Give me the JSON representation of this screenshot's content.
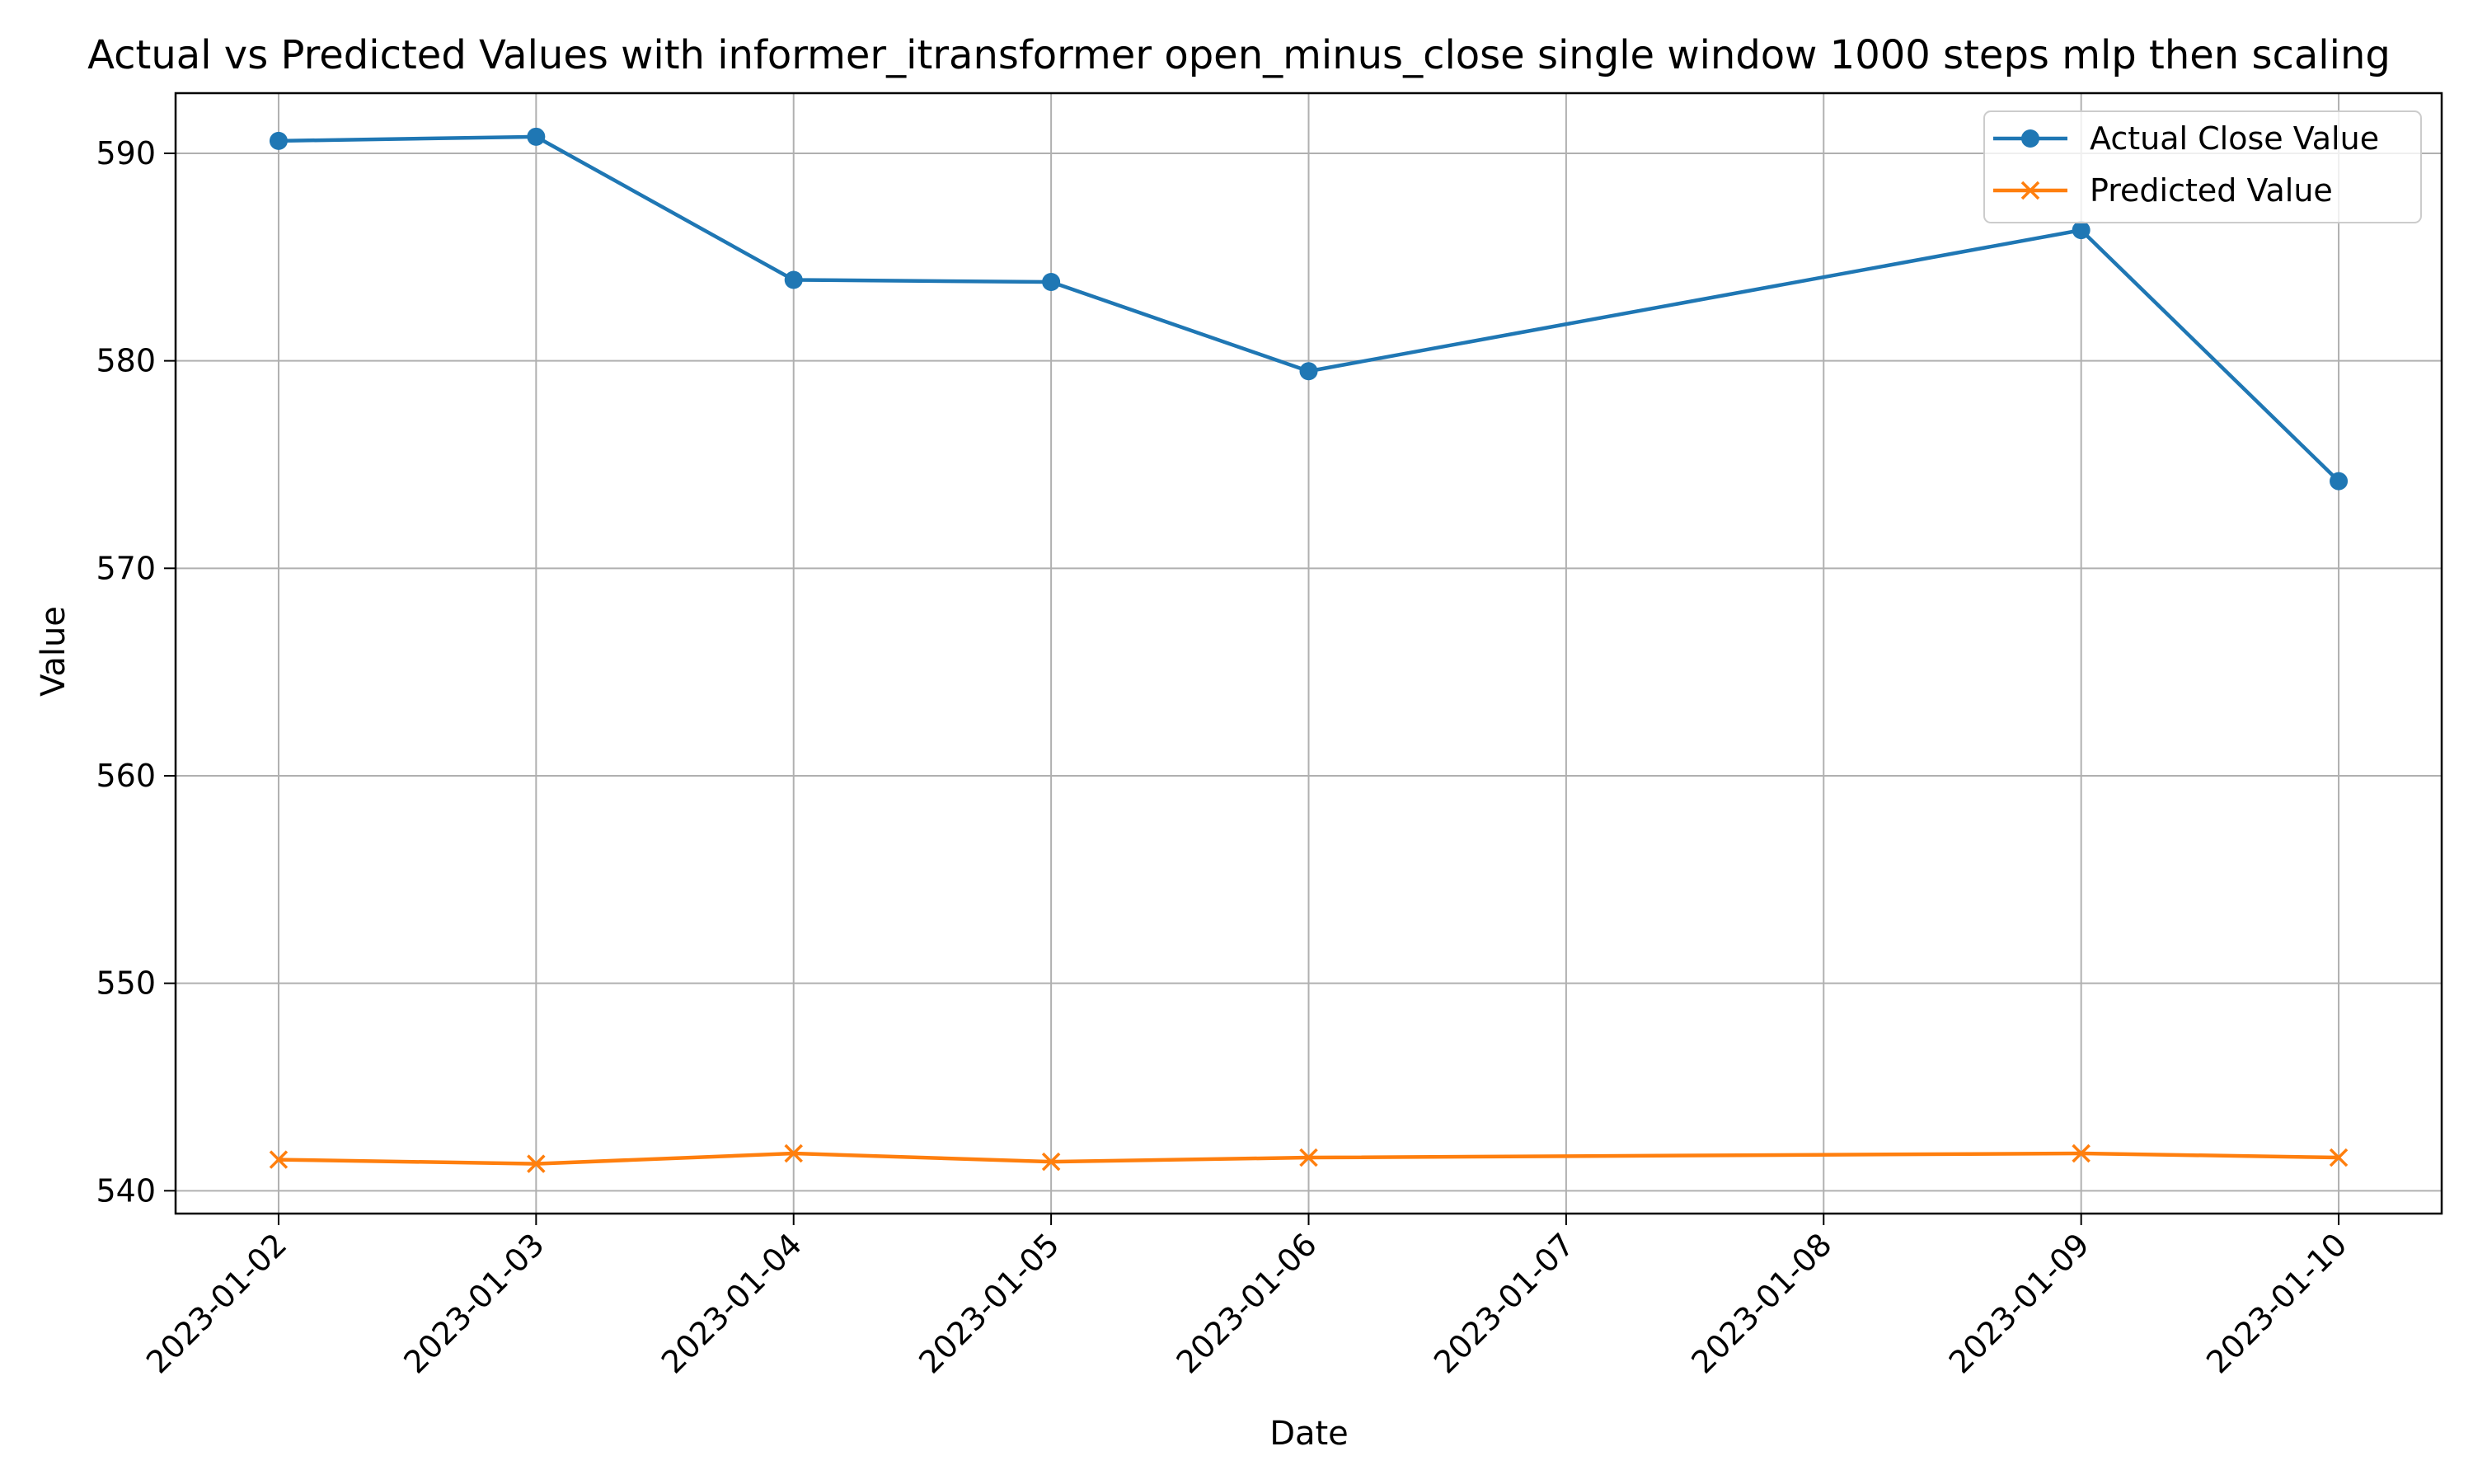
{
  "chart_data": {
    "type": "line",
    "title": "Actual vs Predicted Values with informer_itransformer open_minus_close single window 1000 steps mlp then scaling",
    "xlabel": "Date",
    "ylabel": "Value",
    "x_ticks": [
      "2023-01-02",
      "2023-01-03",
      "2023-01-04",
      "2023-01-05",
      "2023-01-06",
      "2023-01-07",
      "2023-01-08",
      "2023-01-09",
      "2023-01-10"
    ],
    "y_ticks": [
      540,
      550,
      560,
      570,
      580,
      590
    ],
    "ylim": [
      538.9,
      592.9
    ],
    "xlim": [
      "2023-01-01T14:24",
      "2023-01-10T09:36"
    ],
    "grid": true,
    "legend_position": "upper right",
    "series": [
      {
        "name": "Actual Close Value",
        "color": "#1f77b4",
        "marker": "circle",
        "x": [
          "2023-01-02",
          "2023-01-03",
          "2023-01-04",
          "2023-01-05",
          "2023-01-06",
          "2023-01-09",
          "2023-01-10"
        ],
        "values": [
          590.6,
          590.8,
          583.9,
          583.8,
          579.5,
          586.3,
          574.2
        ]
      },
      {
        "name": "Predicted Value",
        "color": "#ff7f0e",
        "marker": "x",
        "x": [
          "2023-01-02",
          "2023-01-03",
          "2023-01-04",
          "2023-01-05",
          "2023-01-06",
          "2023-01-09",
          "2023-01-10"
        ],
        "values": [
          541.5,
          541.3,
          541.8,
          541.4,
          541.6,
          541.8,
          541.6
        ]
      }
    ]
  }
}
